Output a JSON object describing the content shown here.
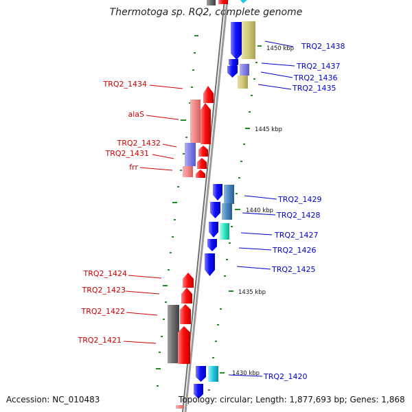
{
  "title": "Thermotoga sp. RQ2, complete genome",
  "accession": "Accession: NC_010483",
  "topology": "Topology: circular; Length: 1,877,693 bp; Genes: 1,868",
  "ruler_labels": [
    "1450 kbp",
    "1445 kbp",
    "1440 kbp",
    "1435 kbp",
    "1430 kbp"
  ],
  "left_genes": [
    "TRQ2_1434",
    "alaS",
    "TRQ2_1432",
    "TRQ2_1431",
    "frr",
    "TRQ2_1424",
    "TRQ2_1423",
    "TRQ2_1422",
    "TRQ2_1421"
  ],
  "right_genes": [
    "TRQ2_1438",
    "TRQ2_1437",
    "TRQ2_1436",
    "TRQ2_1435",
    "TRQ2_1429",
    "TRQ2_1428",
    "TRQ2_1427",
    "TRQ2_1426",
    "TRQ2_1425",
    "TRQ2_1420"
  ],
  "colors": {
    "forward": "#ee0000",
    "reverse": "#0000ee",
    "left_label": "#cc0000",
    "right_label": "#0000cc",
    "backbone": "#808080",
    "tick": "#228b22"
  }
}
